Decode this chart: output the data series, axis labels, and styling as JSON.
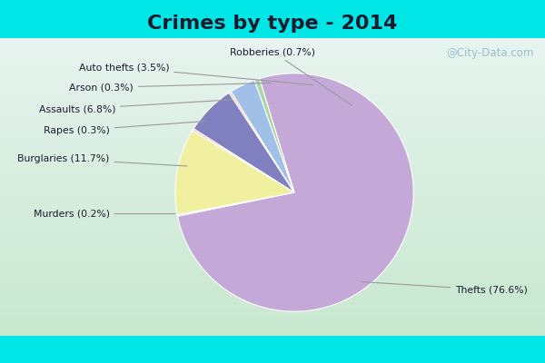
{
  "title": "Crimes by type - 2014",
  "title_fontsize": 16,
  "title_fontweight": "bold",
  "slices": [
    {
      "label": "Thefts (76.6%)",
      "value": 76.6,
      "color": "#c4a8d8"
    },
    {
      "label": "Murders (0.2%)",
      "value": 0.2,
      "color": "#d4e8c0"
    },
    {
      "label": "Burglaries (11.7%)",
      "value": 11.7,
      "color": "#f0f0a0"
    },
    {
      "label": "Rapes (0.3%)",
      "value": 0.3,
      "color": "#f0c8c0"
    },
    {
      "label": "Assaults (6.8%)",
      "value": 6.8,
      "color": "#8080c0"
    },
    {
      "label": "Arson (0.3%)",
      "value": 0.3,
      "color": "#f0c0b0"
    },
    {
      "label": "Auto thefts (3.5%)",
      "value": 3.5,
      "color": "#a0c0e8"
    },
    {
      "label": "Robberies (0.7%)",
      "value": 0.7,
      "color": "#a8d8a0"
    }
  ],
  "bg_cyan": "#00e5e5",
  "bg_main_top": "#d8ece4",
  "bg_main_bottom": "#c8e8d0",
  "watermark": "@City-Data.com",
  "title_color": "#1a1a2e"
}
